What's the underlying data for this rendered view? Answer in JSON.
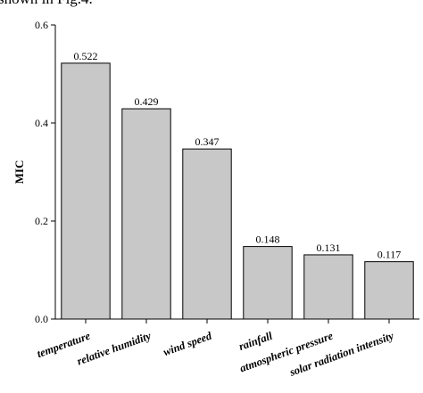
{
  "header_text": "shown in Fig.4.",
  "chart_data": {
    "type": "bar",
    "ylabel": "MIC",
    "categories": [
      "temperature",
      "relative humidity",
      "wind speed",
      "rainfall",
      "atmospheric pressure",
      "solar radiation intensity"
    ],
    "values": [
      0.522,
      0.429,
      0.347,
      0.148,
      0.131,
      0.117
    ],
    "color": "#c8c8c8",
    "ylim": [
      0,
      0.6
    ],
    "yticks": [
      {
        "value": 0,
        "label": "0.0"
      },
      0.2,
      0.4,
      0.6
    ],
    "grid": false
  }
}
